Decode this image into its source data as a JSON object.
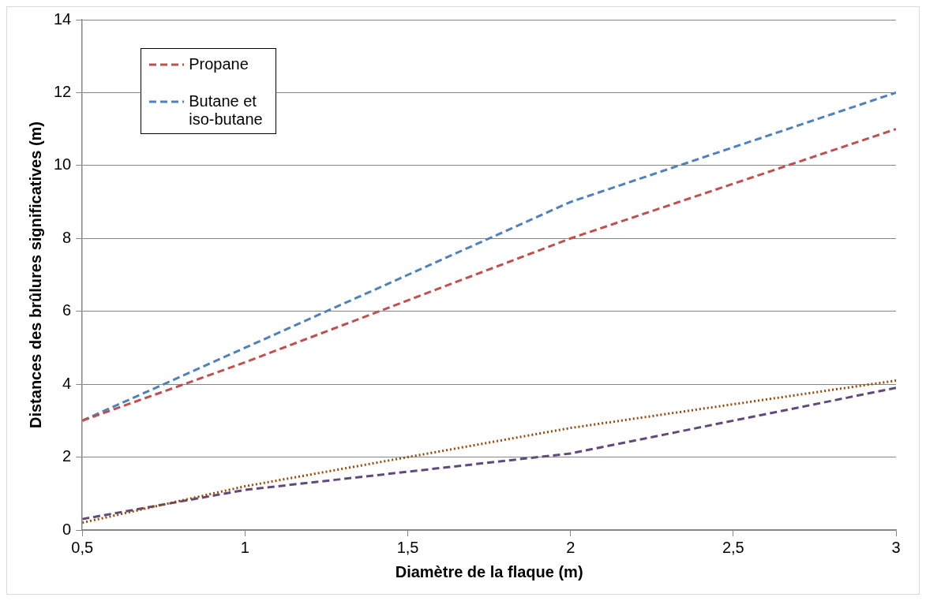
{
  "chart_data": {
    "type": "line",
    "xlabel": "Diamètre de la flaque (m)",
    "ylabel": "Distances des brûlures significatives (m)",
    "x": [
      0.5,
      1,
      1.5,
      2,
      2.5,
      3
    ],
    "xlim": [
      0.5,
      3
    ],
    "xticks": [
      {
        "value": 0.5,
        "label": "0,5"
      },
      1,
      {
        "value": 1.5,
        "label": "1,5"
      },
      2,
      {
        "value": 2.5,
        "label": "2,5"
      },
      3
    ],
    "ylim": [
      0,
      14
    ],
    "yticks": [
      0,
      2,
      4,
      6,
      8,
      10,
      12,
      14
    ],
    "grid": "y",
    "legend": "top left",
    "marker": "none",
    "series": [
      {
        "name": "Propane",
        "color": "#c0504d",
        "line_style": "dashed",
        "values": [
          3,
          4.6,
          6.3,
          8,
          9.5,
          11
        ]
      },
      {
        "name": "Butane et iso-butane",
        "color": "#4f81bd",
        "line_style": "dashed",
        "values": [
          3,
          5,
          7,
          9,
          10.5,
          12
        ]
      },
      {
        "color": "#984807",
        "line_style": "dotted",
        "values": [
          0.2,
          1.2,
          2,
          2.8,
          3.45,
          4.1
        ]
      },
      {
        "color": "#604a7b",
        "line_style": "dashed",
        "values": [
          0.3,
          1.1,
          1.6,
          2.1,
          3,
          3.9
        ]
      }
    ]
  }
}
